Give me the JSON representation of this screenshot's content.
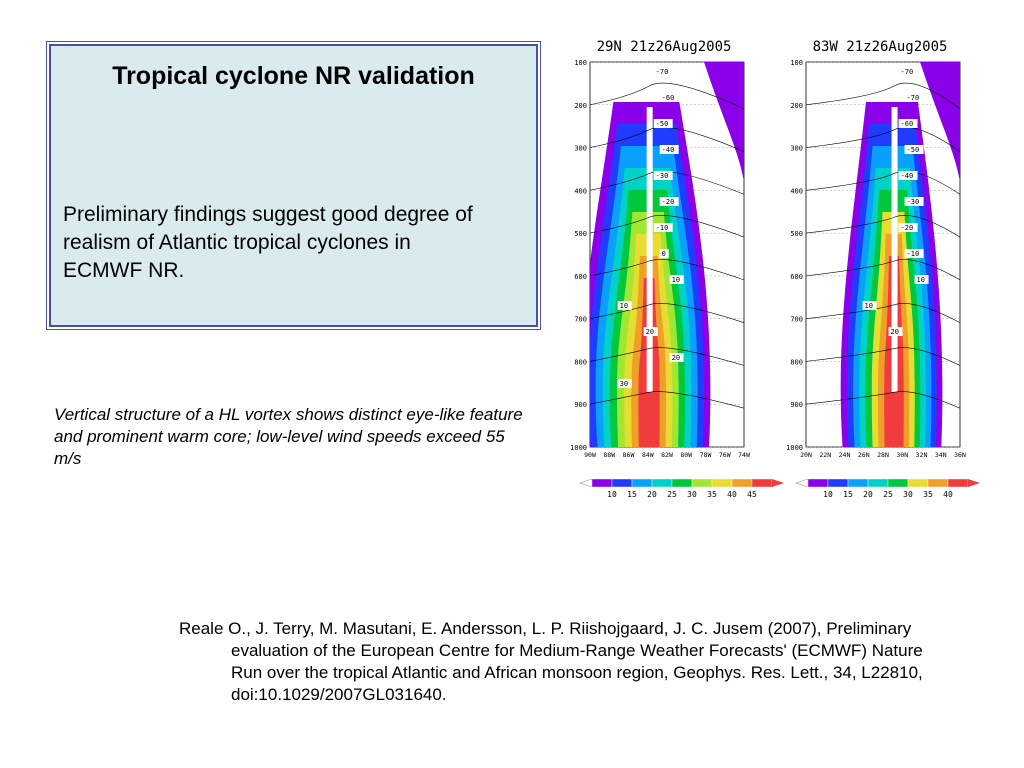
{
  "infobox": {
    "title": "Tropical cyclone NR validation",
    "body": "Preliminary findings suggest good degree of realism of Atlantic tropical cyclones in ECMWF NR."
  },
  "caption": "Vertical structure of a HL vortex shows distinct eye-like feature and prominent warm core; low-level wind speeds exceed 55 m/s",
  "reference": "Reale O., J. Terry, M. Masutani, E. Andersson, L. P. Riishojgaard, J. C. Jusem (2007), Preliminary evaluation of the European Centre for Medium-Range Weather Forecasts' (ECMWF) Nature Run over the tropical Atlantic and African monsoon region, Geophys. Res. Lett., 34, L22810, doi:10.1029/2007GL031640.",
  "chart_data": [
    {
      "type": "heatmap",
      "title": "29N 21z26Aug2005",
      "y_ticks": [
        "100",
        "200",
        "300",
        "400",
        "500",
        "600",
        "700",
        "800",
        "900",
        "1000"
      ],
      "x_ticks": [
        "90W",
        "88W",
        "86W",
        "84W",
        "82W",
        "80W",
        "78W",
        "76W",
        "74W"
      ],
      "center_x": 83.8,
      "colorbar_labels": [
        "10",
        "15",
        "20",
        "25",
        "30",
        "35",
        "40",
        "45"
      ],
      "colorbar_colors": [
        "#8a00e8",
        "#1f3cff",
        "#0aa0ff",
        "#00d2c8",
        "#00c83c",
        "#a0e632",
        "#e6dc32",
        "#f0a028",
        "#f03c3c"
      ],
      "contour_labels": [
        "-70",
        "-60",
        "-50",
        "-40",
        "-30",
        "-20",
        "-10",
        "0",
        "10",
        "10",
        "20",
        "20",
        "30"
      ]
    },
    {
      "type": "heatmap",
      "title": "83W 21z26Aug2005",
      "y_ticks": [
        "100",
        "200",
        "300",
        "400",
        "500",
        "600",
        "700",
        "800",
        "900",
        "1000"
      ],
      "x_ticks": [
        "20N",
        "22N",
        "24N",
        "26N",
        "28N",
        "30N",
        "32N",
        "34N",
        "36N"
      ],
      "center_x": 29.2,
      "colorbar_labels": [
        "10",
        "15",
        "20",
        "25",
        "30",
        "35",
        "40"
      ],
      "colorbar_colors": [
        "#8a00e8",
        "#1f3cff",
        "#0aa0ff",
        "#00d2c8",
        "#00c83c",
        "#e6dc32",
        "#f0a028",
        "#f03c3c"
      ],
      "contour_labels": [
        "-70",
        "-70",
        "-60",
        "-50",
        "-40",
        "-30",
        "-20",
        "-10",
        "10",
        "10",
        "20"
      ]
    }
  ]
}
